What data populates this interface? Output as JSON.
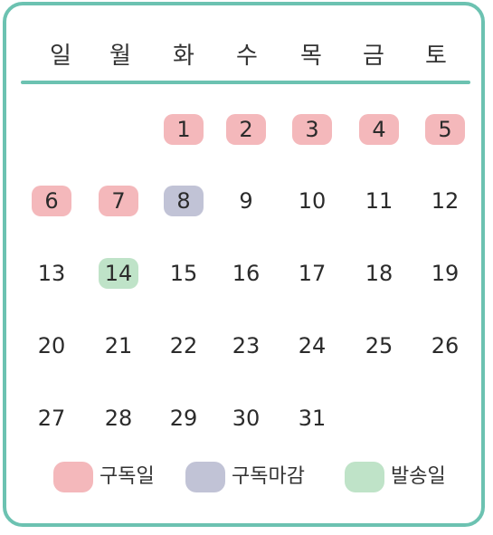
{
  "colors": {
    "border": "#6cc2b1",
    "subscription_day": "#f4b8bb",
    "subscription_deadline": "#c1c3d6",
    "shipping_day": "#bfe3c8"
  },
  "weekdays": [
    "일",
    "월",
    "화",
    "수",
    "목",
    "금",
    "토"
  ],
  "weeks": [
    [
      null,
      null,
      {
        "day": "1",
        "type": "subscription_day"
      },
      {
        "day": "2",
        "type": "subscription_day"
      },
      {
        "day": "3",
        "type": "subscription_day"
      },
      {
        "day": "4",
        "type": "subscription_day"
      },
      {
        "day": "5",
        "type": "subscription_day"
      }
    ],
    [
      {
        "day": "6",
        "type": "subscription_day"
      },
      {
        "day": "7",
        "type": "subscription_day"
      },
      {
        "day": "8",
        "type": "subscription_deadline"
      },
      {
        "day": "9"
      },
      {
        "day": "10"
      },
      {
        "day": "11"
      },
      {
        "day": "12"
      }
    ],
    [
      {
        "day": "13"
      },
      {
        "day": "14",
        "type": "shipping_day"
      },
      {
        "day": "15"
      },
      {
        "day": "16"
      },
      {
        "day": "17"
      },
      {
        "day": "18"
      },
      {
        "day": "19"
      }
    ],
    [
      {
        "day": "20"
      },
      {
        "day": "21"
      },
      {
        "day": "22"
      },
      {
        "day": "23"
      },
      {
        "day": "24"
      },
      {
        "day": "25"
      },
      {
        "day": "26"
      }
    ],
    [
      {
        "day": "27"
      },
      {
        "day": "28"
      },
      {
        "day": "29"
      },
      {
        "day": "30"
      },
      {
        "day": "31"
      },
      null,
      null
    ]
  ],
  "legend": {
    "subscription_day": "구독일",
    "subscription_deadline": "구독마감",
    "shipping_day": "발송일"
  }
}
